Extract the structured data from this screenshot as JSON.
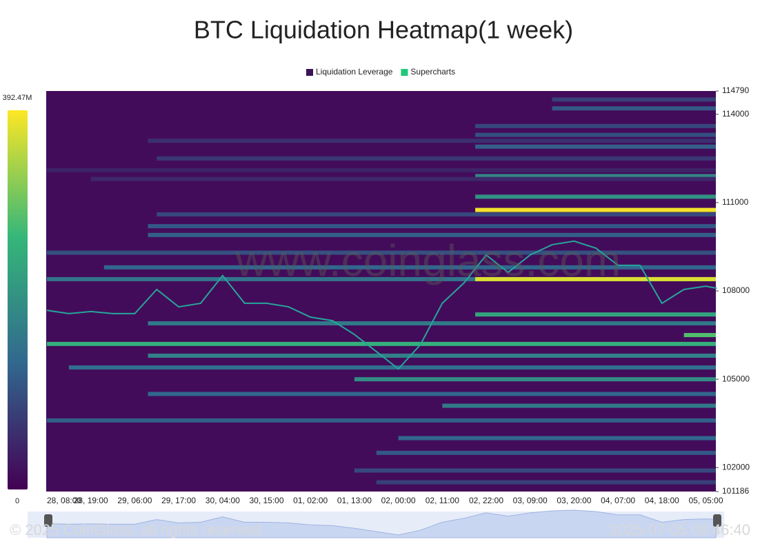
{
  "chart_data": {
    "type": "heatmap",
    "title": "BTC Liquidation Heatmap(1 week)",
    "legend": [
      {
        "name": "Liquidation Leverage",
        "color": "#3b1456"
      },
      {
        "name": "Supercharts",
        "color": "#1fc97a"
      }
    ],
    "watermark": "www.coinglass.com",
    "copyright": "© 2025 CoinGlass, all rights reserved",
    "timestamp": "2025-07-05 08:46:40",
    "categories": [
      "28, 08:00",
      "28, 19:00",
      "29, 06:00",
      "29, 17:00",
      "30, 04:00",
      "30, 15:00",
      "01, 02:00",
      "01, 13:00",
      "02, 00:00",
      "02, 11:00",
      "02, 22:00",
      "03, 09:00",
      "03, 20:00",
      "04, 07:00",
      "04, 18:00",
      "05, 05:00"
    ],
    "ylim": [
      101186,
      114790
    ],
    "yticks": [
      114790,
      114000,
      111000,
      108000,
      105000,
      102000,
      101186
    ],
    "clim": [
      0,
      392.47
    ],
    "cticks": [
      {
        "value": 392.47,
        "label": "392.47M"
      },
      0
    ],
    "colormap": [
      "#440154",
      "#31688e",
      "#35b779",
      "#fde725"
    ],
    "background": "#430c5a",
    "bands": {
      "price": [
        114500,
        114200,
        113600,
        113300,
        113100,
        112900,
        112500,
        112100,
        111900,
        111800,
        111200,
        110750,
        110600,
        110200,
        109900,
        109300,
        108800,
        108400,
        108400,
        107200,
        106900,
        106500,
        106200,
        105800,
        105400,
        105000,
        104500,
        104100,
        103600,
        103000,
        102500,
        101900,
        101500
      ],
      "start": [
        11.5,
        11.5,
        9.75,
        9.75,
        2.3,
        9.75,
        2.5,
        0,
        9.75,
        1.0,
        9.75,
        9.75,
        2.5,
        2.3,
        2.3,
        0,
        1.3,
        0,
        9.75,
        9.75,
        2.3,
        14.5,
        0,
        2.3,
        0.5,
        7,
        2.3,
        9,
        0,
        8,
        7.5,
        7,
        7.5
      ],
      "values": [
        80,
        110,
        90,
        100,
        60,
        120,
        70,
        45,
        180,
        50,
        200,
        385,
        90,
        110,
        120,
        100,
        130,
        150,
        370,
        230,
        160,
        280,
        250,
        170,
        140,
        190,
        130,
        160,
        120,
        130,
        110,
        90,
        80
      ]
    },
    "price": {
      "color": "#26a69a",
      "x": [
        0,
        0.5,
        1,
        1.5,
        2,
        2.5,
        3,
        3.5,
        4,
        4.5,
        5,
        5.5,
        6,
        6.5,
        7,
        7.5,
        8,
        8.5,
        9,
        9.5,
        10,
        10.5,
        11,
        11.5,
        12,
        12.5,
        13,
        13.5,
        14,
        14.5,
        15,
        15.25
      ],
      "values": [
        107340,
        107230,
        107300,
        107230,
        107230,
        108050,
        107460,
        107580,
        108520,
        107580,
        107580,
        107460,
        107110,
        106990,
        106520,
        105940,
        105350,
        106170,
        107580,
        108280,
        109220,
        108630,
        109220,
        109570,
        109690,
        109450,
        108870,
        108870,
        107580,
        108050,
        108160,
        108090
      ]
    }
  }
}
